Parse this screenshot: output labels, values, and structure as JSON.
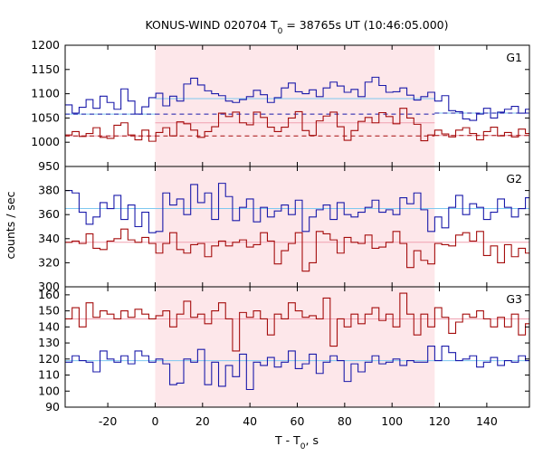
{
  "title": {
    "prefix": "KONUS-WIND 020704 T",
    "sub": "0",
    "suffix": " = 38765s UT (10:46:05.000)"
  },
  "ylabel": "counts / sec",
  "xlabel": {
    "prefix": "T - T",
    "sub": "0",
    "suffix": ", s"
  },
  "colors": {
    "blue_series": "#1a1aaa",
    "red_series": "#a50d0d",
    "blue_bg_line": "#7ec8f0",
    "red_bg_line": "#f0a0b0",
    "highlight": "#fde7ea"
  },
  "chart_data": {
    "type": "line",
    "step_width": 2.944,
    "x_range": [
      -38,
      158
    ],
    "xticks": [
      -20,
      0,
      20,
      40,
      60,
      80,
      100,
      120,
      140
    ],
    "highlight_interval": [
      0,
      118
    ],
    "panels": [
      {
        "name": "G1",
        "ylim": [
          950,
          1200
        ],
        "yticks": [
          950,
          1000,
          1050,
          1100,
          1150,
          1200
        ],
        "series": [
          {
            "color": "blue",
            "x_start": -38,
            "values": [
              1077,
              1060,
              1072,
              1088,
              1070,
              1095,
              1082,
              1068,
              1110,
              1085,
              1058,
              1073,
              1092,
              1101,
              1075,
              1095,
              1085,
              1120,
              1132,
              1118,
              1106,
              1100,
              1096,
              1085,
              1082,
              1088,
              1094,
              1107,
              1098,
              1082,
              1092,
              1112,
              1122,
              1104,
              1100,
              1108,
              1094,
              1112,
              1124,
              1116,
              1103,
              1109,
              1094,
              1124,
              1134,
              1117,
              1103,
              1104,
              1112,
              1097,
              1087,
              1094,
              1103,
              1085,
              1096,
              1065,
              1063,
              1048,
              1045,
              1058,
              1070,
              1050,
              1062,
              1068,
              1074,
              1060,
              1068
            ]
          },
          {
            "color": "red",
            "x_start": -38,
            "values": [
              1015,
              1022,
              1012,
              1018,
              1030,
              1010,
              1008,
              1035,
              1040,
              1015,
              1005,
              1025,
              1002,
              1020,
              1030,
              1013,
              1042,
              1038,
              1025,
              1010,
              1022,
              1032,
              1060,
              1053,
              1062,
              1040,
              1036,
              1062,
              1051,
              1031,
              1022,
              1031,
              1050,
              1063,
              1024,
              1014,
              1044,
              1054,
              1062,
              1032,
              1004,
              1024,
              1043,
              1051,
              1040,
              1061,
              1053,
              1038,
              1070,
              1050,
              1037,
              1003,
              1015,
              1025,
              1017,
              1011,
              1025,
              1030,
              1018,
              1005,
              1022,
              1031,
              1013,
              1020,
              1011,
              1027,
              1018
            ]
          }
        ],
        "background_levels": [
          {
            "color": "blue",
            "value": 1058,
            "x_range": [
              -38,
              0
            ]
          },
          {
            "color": "blue",
            "value": 1090,
            "x_range": [
              0,
              118
            ]
          },
          {
            "color": "blue",
            "value": 1060,
            "x_range": [
              118,
              158
            ]
          },
          {
            "color": "red",
            "value": 1013,
            "x_range": [
              -38,
              0
            ]
          },
          {
            "color": "red",
            "value": 1040,
            "x_range": [
              0,
              118
            ]
          },
          {
            "color": "red",
            "value": 1014,
            "x_range": [
              118,
              158
            ]
          }
        ]
      },
      {
        "name": "G2",
        "ylim": [
          300,
          400
        ],
        "yticks": [
          300,
          320,
          340,
          360,
          380
        ],
        "series": [
          {
            "color": "blue",
            "x_start": -38,
            "values": [
              380,
              378,
              362,
              352,
              358,
              370,
              365,
              376,
              356,
              368,
              350,
              362,
              345,
              346,
              378,
              368,
              373,
              360,
              385,
              370,
              378,
              356,
              386,
              375,
              355,
              366,
              373,
              354,
              366,
              358,
              363,
              368,
              360,
              372,
              346,
              358,
              364,
              368,
              356,
              370,
              360,
              358,
              362,
              366,
              372,
              362,
              364,
              360,
              374,
              369,
              378,
              364,
              346,
              358,
              349,
              366,
              376,
              360,
              369,
              366,
              356,
              362,
              373,
              366,
              358,
              365,
              374,
              364
            ]
          },
          {
            "color": "red",
            "x_start": -38,
            "values": [
              337,
              338,
              336,
              344,
              332,
              331,
              338,
              340,
              348,
              339,
              337,
              341,
              336,
              328,
              336,
              345,
              331,
              328,
              335,
              336,
              325,
              334,
              338,
              334,
              337,
              339,
              333,
              335,
              345,
              338,
              319,
              330,
              336,
              345,
              313,
              320,
              346,
              344,
              339,
              328,
              341,
              337,
              336,
              343,
              332,
              333,
              337,
              346,
              336,
              316,
              330,
              322,
              319,
              336,
              335,
              334,
              343,
              345,
              338,
              346,
              326,
              334,
              320,
              335,
              325,
              332,
              328,
              336
            ]
          }
        ],
        "background_levels": [
          {
            "color": "blue",
            "value": 365,
            "x_range": [
              -38,
              158
            ]
          },
          {
            "color": "red",
            "value": 337,
            "x_range": [
              -38,
              158
            ]
          }
        ]
      },
      {
        "name": "G3",
        "ylim": [
          90,
          165
        ],
        "yticks": [
          90,
          100,
          110,
          120,
          130,
          140,
          150,
          160
        ],
        "series": [
          {
            "color": "red",
            "x_start": -38,
            "values": [
              145,
              152,
              140,
              155,
              146,
              150,
              148,
              145,
              150,
              146,
              151,
              148,
              145,
              147,
              150,
              140,
              148,
              156,
              146,
              148,
              142,
              150,
              155,
              145,
              125,
              149,
              146,
              150,
              145,
              135,
              148,
              145,
              155,
              150,
              146,
              147,
              145,
              158,
              128,
              145,
              140,
              148,
              142,
              148,
              152,
              144,
              148,
              140,
              161,
              148,
              135,
              148,
              140,
              152,
              146,
              136,
              143,
              148,
              146,
              150,
              145,
              140,
              146,
              140,
              148,
              135,
              142,
              140
            ]
          },
          {
            "color": "blue",
            "x_start": -38,
            "values": [
              118,
              122,
              119,
              118,
              112,
              125,
              120,
              118,
              122,
              117,
              125,
              122,
              118,
              120,
              117,
              104,
              105,
              120,
              118,
              126,
              104,
              118,
              103,
              116,
              109,
              123,
              101,
              118,
              116,
              121,
              115,
              118,
              125,
              114,
              117,
              123,
              111,
              118,
              122,
              119,
              106,
              117,
              112,
              118,
              122,
              117,
              118,
              120,
              116,
              119,
              118,
              118,
              128,
              119,
              128,
              124,
              119,
              120,
              122,
              115,
              118,
              121,
              116,
              119,
              118,
              122,
              119
            ]
          }
        ],
        "background_levels": [
          {
            "color": "red",
            "value": 145,
            "x_range": [
              -38,
              158
            ]
          },
          {
            "color": "blue",
            "value": 119,
            "x_range": [
              -38,
              158
            ]
          }
        ]
      }
    ]
  }
}
